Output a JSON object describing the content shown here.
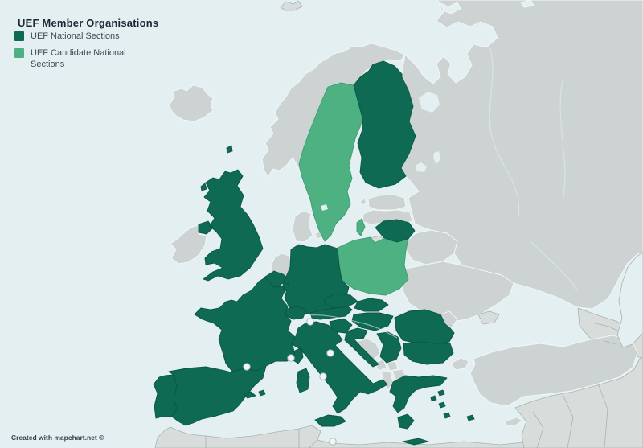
{
  "page_title": "UEF Member Organisations",
  "legend": {
    "items": [
      {
        "label": "UEF National Sections",
        "color": "#0e6a53",
        "status": "member"
      },
      {
        "label": "UEF Candidate National Sections",
        "color": "#4db182",
        "status": "candidate"
      }
    ]
  },
  "attribution": "Created with mapchart.net ©",
  "map": {
    "colors": {
      "sea": "#e4eff2",
      "member": "#0e6a53",
      "member_border": "#0a5745",
      "candidate": "#4db182",
      "candidate_border": "#3d9c70",
      "unselected_land": "#cdd3d2",
      "unselected_border": "#f3f7f7",
      "background_land": "#d8dddb",
      "background_border": "#a4b5b1",
      "microstate_fill": "#f2f6f6",
      "microstate_border": "#aab9b6"
    },
    "member_countries": [
      "United Kingdom",
      "Portugal",
      "Spain",
      "France",
      "Belgium",
      "Luxembourg",
      "Germany",
      "Switzerland",
      "Italy",
      "Austria",
      "Czechia",
      "Slovakia",
      "Hungary",
      "Slovenia",
      "Croatia",
      "Serbia",
      "Romania",
      "Bulgaria",
      "Greece",
      "Lithuania",
      "Finland"
    ],
    "candidate_countries": [
      "Sweden",
      "Poland"
    ],
    "unselected_countries": [
      "Iceland",
      "Ireland",
      "Norway",
      "Denmark",
      "Netherlands",
      "Estonia",
      "Latvia",
      "Russia",
      "Belarus",
      "Ukraine",
      "Moldova",
      "Bosnia and Herzegovina",
      "Montenegro",
      "Kosovo",
      "Albania",
      "North Macedonia",
      "Turkey",
      "Cyprus"
    ],
    "microstate_markers": [
      "Andorra",
      "Monaco",
      "Liechtenstein",
      "San Marino",
      "Vatican City",
      "Malta"
    ]
  }
}
